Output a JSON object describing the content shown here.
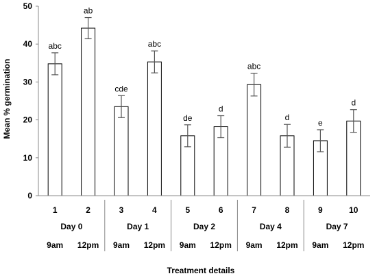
{
  "chart_data": {
    "type": "bar",
    "categories": [
      "1",
      "2",
      "3",
      "4",
      "5",
      "6",
      "7",
      "8",
      "9",
      "10"
    ],
    "values": [
      34.8,
      44.2,
      23.5,
      35.3,
      15.8,
      18.2,
      29.3,
      15.8,
      14.5,
      19.7
    ],
    "errors": [
      2.9,
      2.8,
      2.9,
      2.9,
      2.9,
      2.9,
      3.0,
      3.0,
      2.9,
      3.0
    ],
    "significance": [
      "abc",
      "ab",
      "cde",
      "abc",
      "de",
      "d",
      "abc",
      "d",
      "e",
      "d"
    ],
    "groups": [
      {
        "label": "Day 0",
        "times": [
          "9am",
          "12pm"
        ]
      },
      {
        "label": "Day 1",
        "times": [
          "9am",
          "12pm"
        ]
      },
      {
        "label": "Day 2",
        "times": [
          "9am",
          "12pm"
        ]
      },
      {
        "label": "Day 4",
        "times": [
          "9am",
          "12pm"
        ]
      },
      {
        "label": "Day 7",
        "times": [
          "9am",
          "12pm"
        ]
      }
    ],
    "yticks": [
      "0",
      "10",
      "20",
      "30",
      "40",
      "50"
    ],
    "ylim": [
      0,
      50
    ],
    "xlabel": "Treatment details",
    "ylabel": "Mean % germination",
    "grid": false,
    "colors": {
      "bar_fill": "#ffffff",
      "bar_stroke": "#000000",
      "error": "#555555",
      "axis": "#888888"
    }
  }
}
